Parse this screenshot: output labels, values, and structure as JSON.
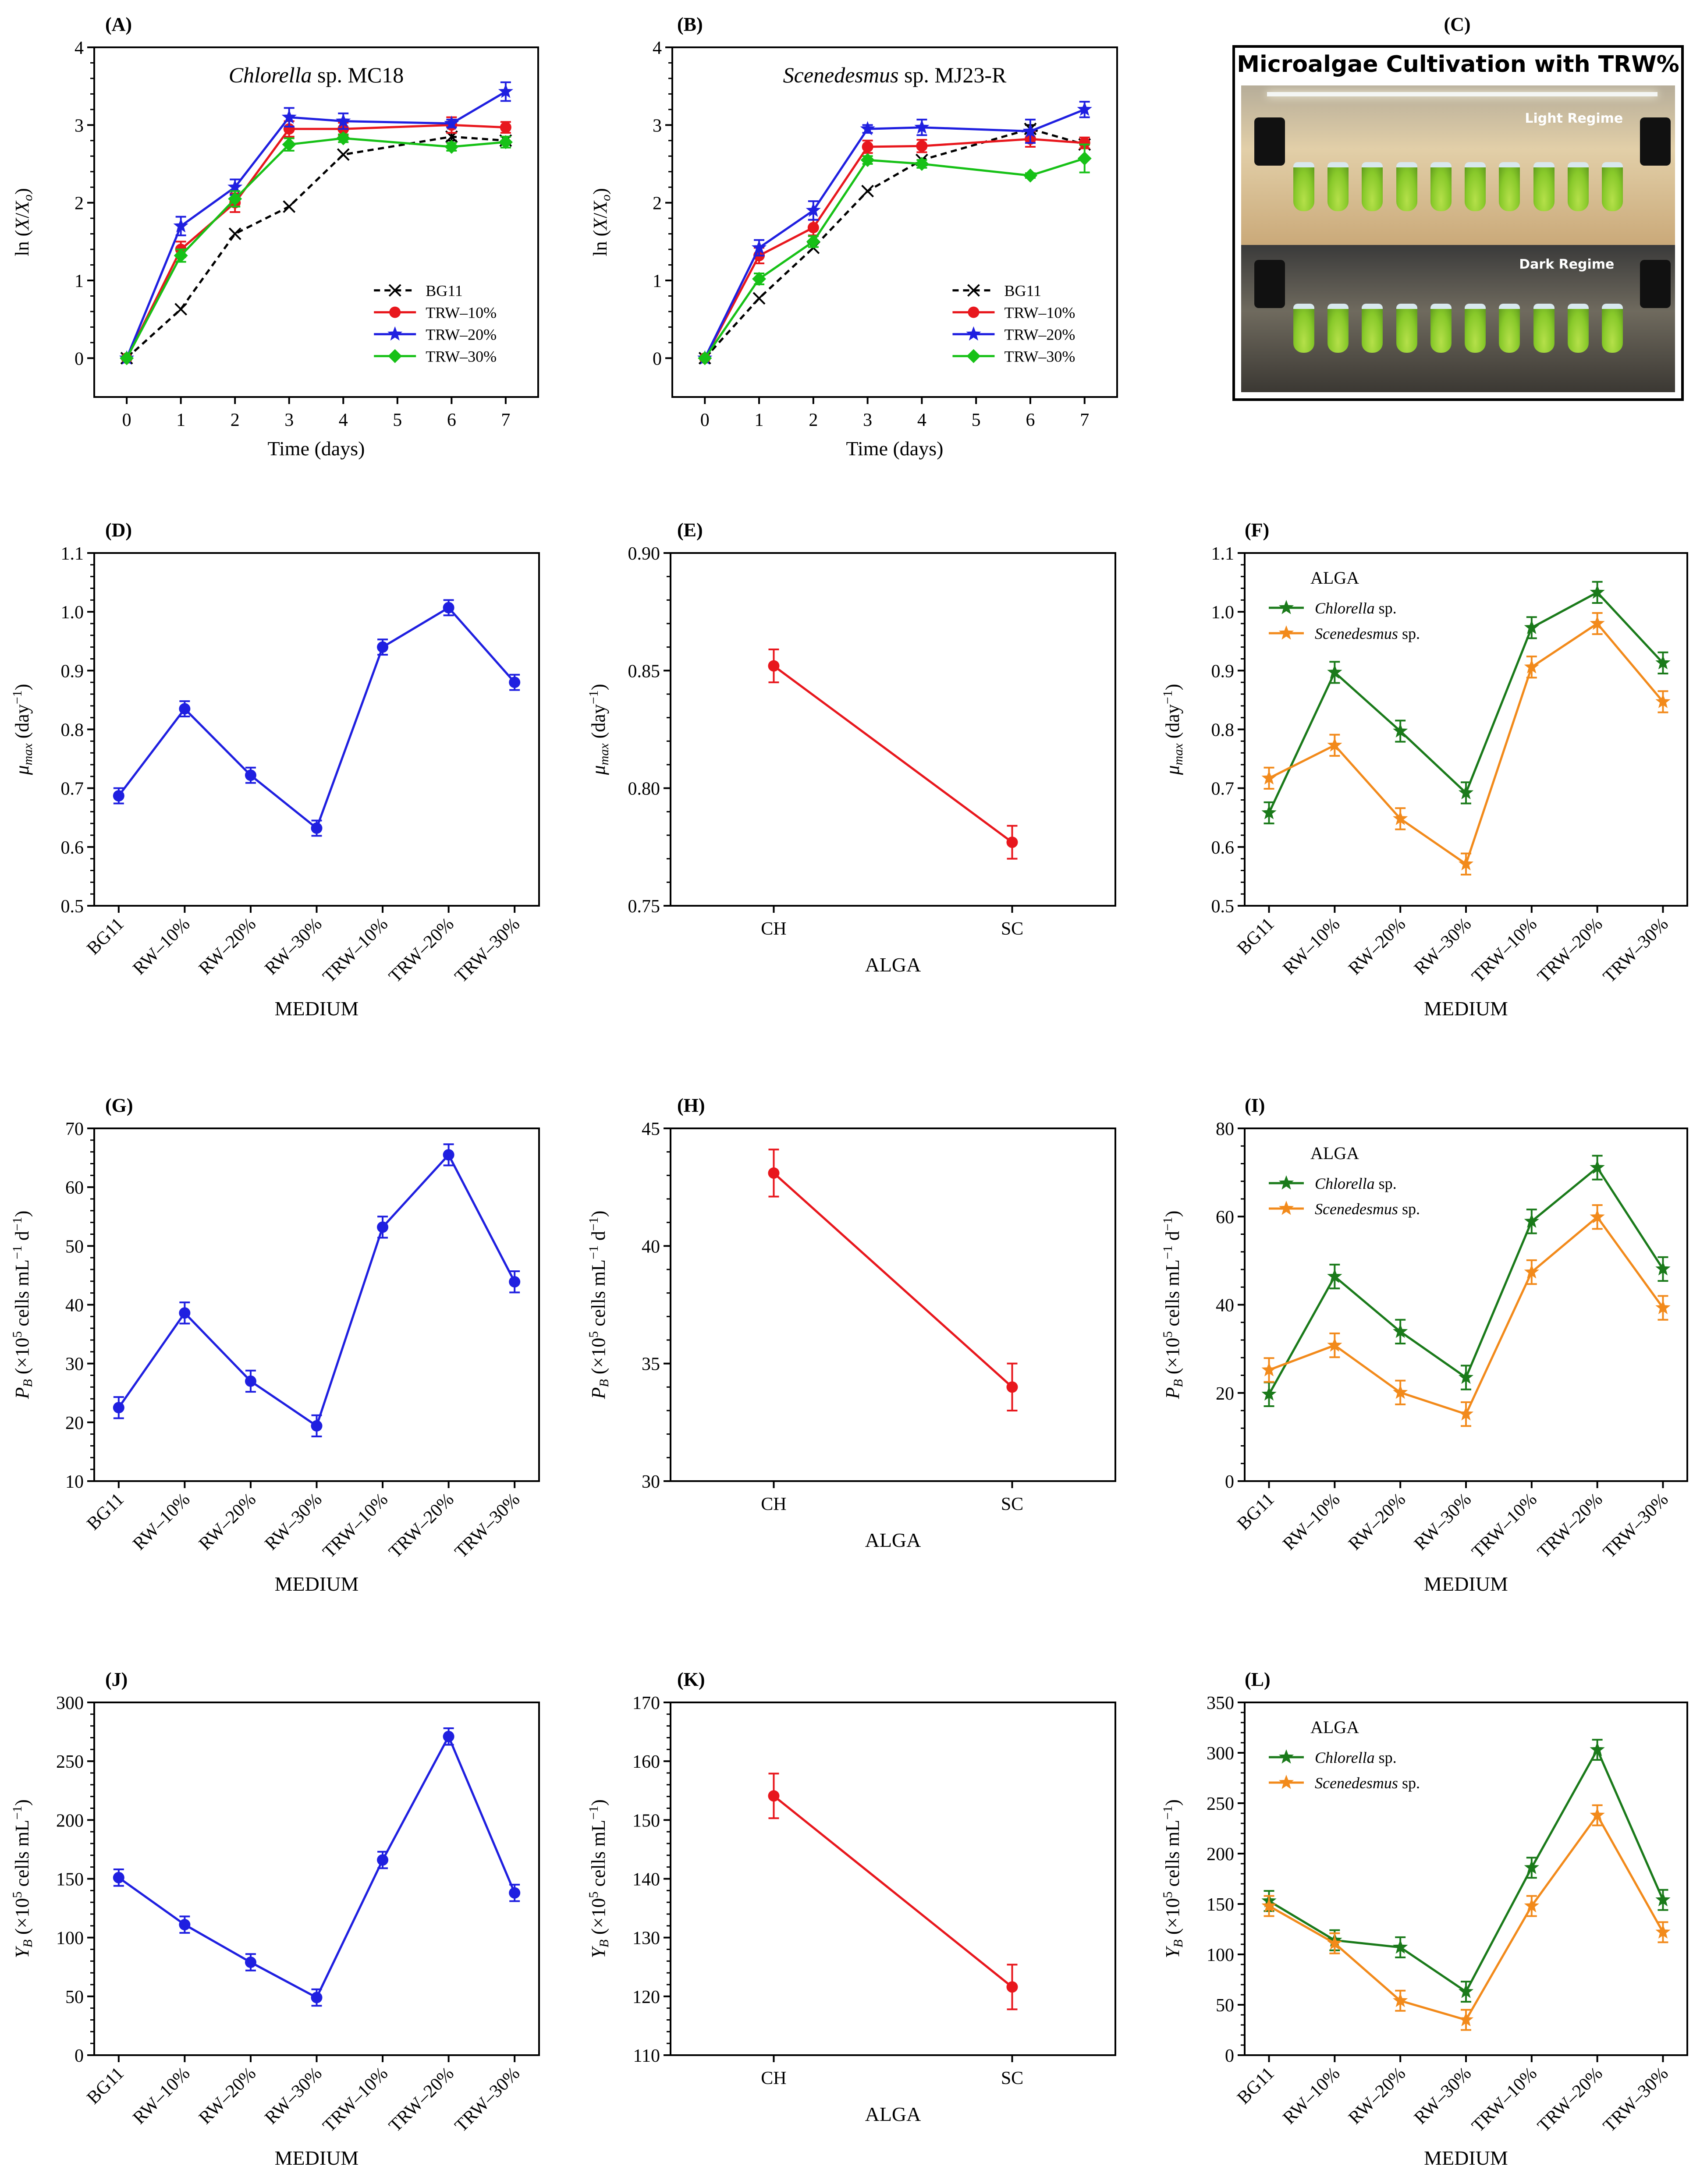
{
  "figure": {
    "panels": {
      "A": {
        "label": "(A)",
        "title_italic": "Chlorella",
        "title_rest": " sp. MC18",
        "ylabel": "ln (X/Xo)",
        "xlabel": "Time (days)"
      },
      "B": {
        "label": "(B)",
        "title_italic": "Scenedesmus",
        "title_rest": " sp. MJ23-R",
        "ylabel": "ln (X/Xo)",
        "xlabel": "Time (days)"
      },
      "C": {
        "label": "(C)",
        "title": "Microalgae Cultivation with TRW%",
        "light_label": "Light Regime",
        "dark_label": "Dark Regime"
      },
      "D": {
        "label": "(D)",
        "ylabel": "μmax (day−1)",
        "xlabel": "MEDIUM"
      },
      "E": {
        "label": "(E)",
        "ylabel": "μmax (day−1)",
        "xlabel": "ALGA"
      },
      "F": {
        "label": "(F)",
        "ylabel": "μmax (day−1)",
        "xlabel": "MEDIUM",
        "legend_title": "ALGA",
        "legend_1": "Chlorella sp.",
        "legend_2": "Scenedesmus sp."
      },
      "G": {
        "label": "(G)",
        "ylabel": "PB (×10^5 cells mL−1 d−1)",
        "xlabel": "MEDIUM"
      },
      "H": {
        "label": "(H)",
        "ylabel": "PB (×10^5 cells mL−1 d−1)",
        "xlabel": "ALGA"
      },
      "I": {
        "label": "(I)",
        "ylabel": "PB (×10^5 cells mL−1 d−1)",
        "xlabel": "MEDIUM",
        "legend_title": "ALGA",
        "legend_1": "Chlorella sp.",
        "legend_2": "Scenedesmus sp."
      },
      "J": {
        "label": "(J)",
        "ylabel": "YB (×10^5 cells mL−1)",
        "xlabel": "MEDIUM"
      },
      "K": {
        "label": "(K)",
        "ylabel": "YB (×10^5 cells mL−1)",
        "xlabel": "ALGA"
      },
      "L": {
        "label": "(L)",
        "ylabel": "YB (×10^5 cells mL−1)",
        "xlabel": "MEDIUM",
        "legend_title": "ALGA",
        "legend_1": "Chlorella sp.",
        "legend_2": "Scenedesmus sp."
      }
    }
  },
  "colors": {
    "blue": "#1f1fe0",
    "red": "#e8171d",
    "green": "#17c117",
    "dark_green": "#1a7a1a",
    "orange": "#f28a1b",
    "black": "#000000"
  },
  "chart_data": [
    {
      "id": "A",
      "type": "line",
      "x": [
        0,
        1,
        2,
        3,
        4,
        6,
        7
      ],
      "xticks": [
        0,
        1,
        2,
        3,
        4,
        5,
        6,
        7
      ],
      "xlim": [
        -0.6,
        7.6
      ],
      "ylim": [
        -0.5,
        4
      ],
      "yticks": [
        0,
        1,
        2,
        3,
        4
      ],
      "legend_position": "lower-right",
      "series": [
        {
          "name": "BG11",
          "color": "#000000",
          "marker": "x",
          "dash": true,
          "values": [
            0,
            0.63,
            1.6,
            1.95,
            2.62,
            2.85,
            2.8
          ],
          "err": [
            0,
            0,
            0,
            0,
            0,
            0.05,
            0.05
          ]
        },
        {
          "name": "TRW–10%",
          "color": "#e8171d",
          "marker": "circle",
          "values": [
            0,
            1.4,
            2.0,
            2.95,
            2.95,
            3.0,
            2.97
          ],
          "err": [
            0,
            0.1,
            0.12,
            0.1,
            0.08,
            0.1,
            0.07
          ]
        },
        {
          "name": "TRW–20%",
          "color": "#1f1fe0",
          "marker": "star",
          "values": [
            0,
            1.7,
            2.2,
            3.1,
            3.05,
            3.02,
            3.43
          ],
          "err": [
            0,
            0.12,
            0.1,
            0.12,
            0.1,
            0.05,
            0.12
          ]
        },
        {
          "name": "TRW–30%",
          "color": "#17c117",
          "marker": "diamond",
          "values": [
            0,
            1.32,
            2.05,
            2.75,
            2.83,
            2.72,
            2.78
          ],
          "err": [
            0,
            0.08,
            0.1,
            0.08,
            0.05,
            0.05,
            0.07
          ]
        }
      ]
    },
    {
      "id": "B",
      "type": "line",
      "x": [
        0,
        1,
        2,
        3,
        4,
        6,
        7
      ],
      "xticks": [
        0,
        1,
        2,
        3,
        4,
        5,
        6,
        7
      ],
      "xlim": [
        -0.6,
        7.6
      ],
      "ylim": [
        -0.5,
        4
      ],
      "yticks": [
        0,
        1,
        2,
        3,
        4
      ],
      "legend_position": "lower-right",
      "series": [
        {
          "name": "BG11",
          "color": "#000000",
          "marker": "x",
          "dash": true,
          "values": [
            0,
            0.77,
            1.42,
            2.15,
            2.55,
            2.95,
            2.75
          ],
          "err": [
            0,
            0,
            0,
            0,
            0,
            0.05,
            0.05
          ]
        },
        {
          "name": "TRW–10%",
          "color": "#e8171d",
          "marker": "circle",
          "values": [
            0,
            1.32,
            1.68,
            2.72,
            2.73,
            2.82,
            2.77
          ],
          "err": [
            0,
            0.1,
            0.1,
            0.08,
            0.08,
            0.1,
            0.07
          ]
        },
        {
          "name": "TRW–20%",
          "color": "#1f1fe0",
          "marker": "star",
          "values": [
            0,
            1.42,
            1.9,
            2.95,
            2.97,
            2.92,
            3.2
          ],
          "err": [
            0,
            0.1,
            0.12,
            0.05,
            0.1,
            0.15,
            0.1
          ]
        },
        {
          "name": "TRW–30%",
          "color": "#17c117",
          "marker": "diamond",
          "values": [
            0,
            1.02,
            1.5,
            2.55,
            2.5,
            2.35,
            2.57
          ],
          "err": [
            0,
            0.07,
            0.07,
            0.05,
            0.05,
            0.03,
            0.18
          ]
        }
      ]
    },
    {
      "id": "D",
      "type": "line",
      "categories": [
        "BG11",
        "RW–10%",
        "RW–20%",
        "RW–30%",
        "TRW–10%",
        "TRW–20%",
        "TRW–30%"
      ],
      "ylim": [
        0.5,
        1.1
      ],
      "yticks": [
        0.5,
        0.6,
        0.7,
        0.8,
        0.9,
        1.0,
        1.1
      ],
      "ydec": 1,
      "series": [
        {
          "name": "",
          "color": "#1f1fe0",
          "marker": "circle",
          "values": [
            0.687,
            0.835,
            0.722,
            0.632,
            0.94,
            1.007,
            0.88
          ],
          "err": [
            0.013,
            0.013,
            0.013,
            0.013,
            0.013,
            0.013,
            0.013
          ]
        }
      ]
    },
    {
      "id": "E",
      "type": "line",
      "categories": [
        "CH",
        "SC"
      ],
      "ylim": [
        0.75,
        0.9
      ],
      "yticks": [
        0.75,
        0.8,
        0.85,
        0.9
      ],
      "ydec": 2,
      "series": [
        {
          "name": "",
          "color": "#e8171d",
          "marker": "circle",
          "values": [
            0.852,
            0.777
          ],
          "err": [
            0.007,
            0.007
          ]
        }
      ]
    },
    {
      "id": "F",
      "type": "line",
      "categories": [
        "BG11",
        "RW–10%",
        "RW–20%",
        "RW–30%",
        "TRW–10%",
        "TRW–20%",
        "TRW–30%"
      ],
      "ylim": [
        0.5,
        1.1
      ],
      "yticks": [
        0.5,
        0.6,
        0.7,
        0.8,
        0.9,
        1.0,
        1.1
      ],
      "ydec": 1,
      "legend_position": "top-left",
      "series": [
        {
          "name": "Chlorella sp.",
          "color": "#1a7a1a",
          "marker": "star",
          "values": [
            0.658,
            0.897,
            0.797,
            0.692,
            0.973,
            1.033,
            0.913
          ],
          "err": [
            0.018,
            0.018,
            0.018,
            0.018,
            0.018,
            0.018,
            0.018
          ]
        },
        {
          "name": "Scenedesmus sp.",
          "color": "#f28a1b",
          "marker": "star",
          "values": [
            0.717,
            0.773,
            0.648,
            0.571,
            0.906,
            0.98,
            0.847
          ],
          "err": [
            0.018,
            0.018,
            0.018,
            0.018,
            0.018,
            0.018,
            0.018
          ]
        }
      ]
    },
    {
      "id": "G",
      "type": "line",
      "categories": [
        "BG11",
        "RW–10%",
        "RW–20%",
        "RW–30%",
        "TRW–10%",
        "TRW–20%",
        "TRW–30%"
      ],
      "ylim": [
        10,
        70
      ],
      "yticks": [
        10,
        20,
        30,
        40,
        50,
        60,
        70
      ],
      "ydec": 0,
      "series": [
        {
          "name": "",
          "color": "#1f1fe0",
          "marker": "circle",
          "values": [
            22.5,
            38.6,
            27,
            19.4,
            53.2,
            65.5,
            43.9
          ],
          "err": [
            1.8,
            1.8,
            1.8,
            1.8,
            1.8,
            1.8,
            1.8
          ]
        }
      ]
    },
    {
      "id": "H",
      "type": "line",
      "categories": [
        "CH",
        "SC"
      ],
      "ylim": [
        30,
        45
      ],
      "yticks": [
        30,
        35,
        40,
        45
      ],
      "ydec": 0,
      "series": [
        {
          "name": "",
          "color": "#e8171d",
          "marker": "circle",
          "values": [
            43.1,
            34.0
          ],
          "err": [
            1.0,
            1.0
          ]
        }
      ]
    },
    {
      "id": "I",
      "type": "line",
      "categories": [
        "BG11",
        "RW–10%",
        "RW–20%",
        "RW–30%",
        "TRW–10%",
        "TRW–20%",
        "TRW–30%"
      ],
      "ylim": [
        0,
        80
      ],
      "yticks": [
        0,
        20,
        40,
        60,
        80
      ],
      "ydec": 0,
      "legend_position": "top-left",
      "series": [
        {
          "name": "Chlorella sp.",
          "color": "#1a7a1a",
          "marker": "star",
          "values": [
            19.7,
            46.4,
            33.9,
            23.5,
            58.9,
            71.1,
            48.1
          ],
          "err": [
            2.7,
            2.7,
            2.7,
            2.7,
            2.7,
            2.7,
            2.7
          ]
        },
        {
          "name": "Scenedesmus sp.",
          "color": "#f28a1b",
          "marker": "star",
          "values": [
            25.2,
            30.8,
            20.1,
            15.2,
            47.4,
            59.9,
            39.3
          ],
          "err": [
            2.7,
            2.7,
            2.7,
            2.7,
            2.7,
            2.7,
            2.7
          ]
        }
      ]
    },
    {
      "id": "J",
      "type": "line",
      "categories": [
        "BG11",
        "RW–10%",
        "RW–20%",
        "RW–30%",
        "TRW–10%",
        "TRW–20%",
        "TRW–30%"
      ],
      "ylim": [
        0,
        300
      ],
      "yticks": [
        0,
        50,
        100,
        150,
        200,
        250,
        300
      ],
      "ydec": 0,
      "series": [
        {
          "name": "",
          "color": "#1f1fe0",
          "marker": "circle",
          "values": [
            151,
            111,
            79,
            49,
            166,
            271,
            138
          ],
          "err": [
            7,
            7,
            7,
            7,
            7,
            7,
            7
          ]
        }
      ]
    },
    {
      "id": "K",
      "type": "line",
      "categories": [
        "CH",
        "SC"
      ],
      "ylim": [
        110,
        170
      ],
      "yticks": [
        110,
        120,
        130,
        140,
        150,
        160,
        170
      ],
      "ydec": 0,
      "series": [
        {
          "name": "",
          "color": "#e8171d",
          "marker": "circle",
          "values": [
            154.1,
            121.6
          ],
          "err": [
            3.8,
            3.8
          ]
        }
      ]
    },
    {
      "id": "L",
      "type": "line",
      "categories": [
        "BG11",
        "RW–10%",
        "RW–20%",
        "RW–30%",
        "TRW–10%",
        "TRW–20%",
        "TRW–30%"
      ],
      "ylim": [
        0,
        350
      ],
      "yticks": [
        0,
        50,
        100,
        150,
        200,
        250,
        300,
        350
      ],
      "ydec": 0,
      "legend_position": "top-left",
      "series": [
        {
          "name": "Chlorella sp.",
          "color": "#1a7a1a",
          "marker": "star",
          "values": [
            153,
            114,
            107,
            63,
            186,
            303,
            154
          ],
          "err": [
            10,
            10,
            10,
            10,
            10,
            10,
            10
          ]
        },
        {
          "name": "Scenedesmus sp.",
          "color": "#f28a1b",
          "marker": "star",
          "values": [
            148,
            111,
            54,
            35,
            148,
            238,
            122
          ],
          "err": [
            10,
            10,
            10,
            10,
            10,
            10,
            10
          ]
        }
      ]
    }
  ]
}
